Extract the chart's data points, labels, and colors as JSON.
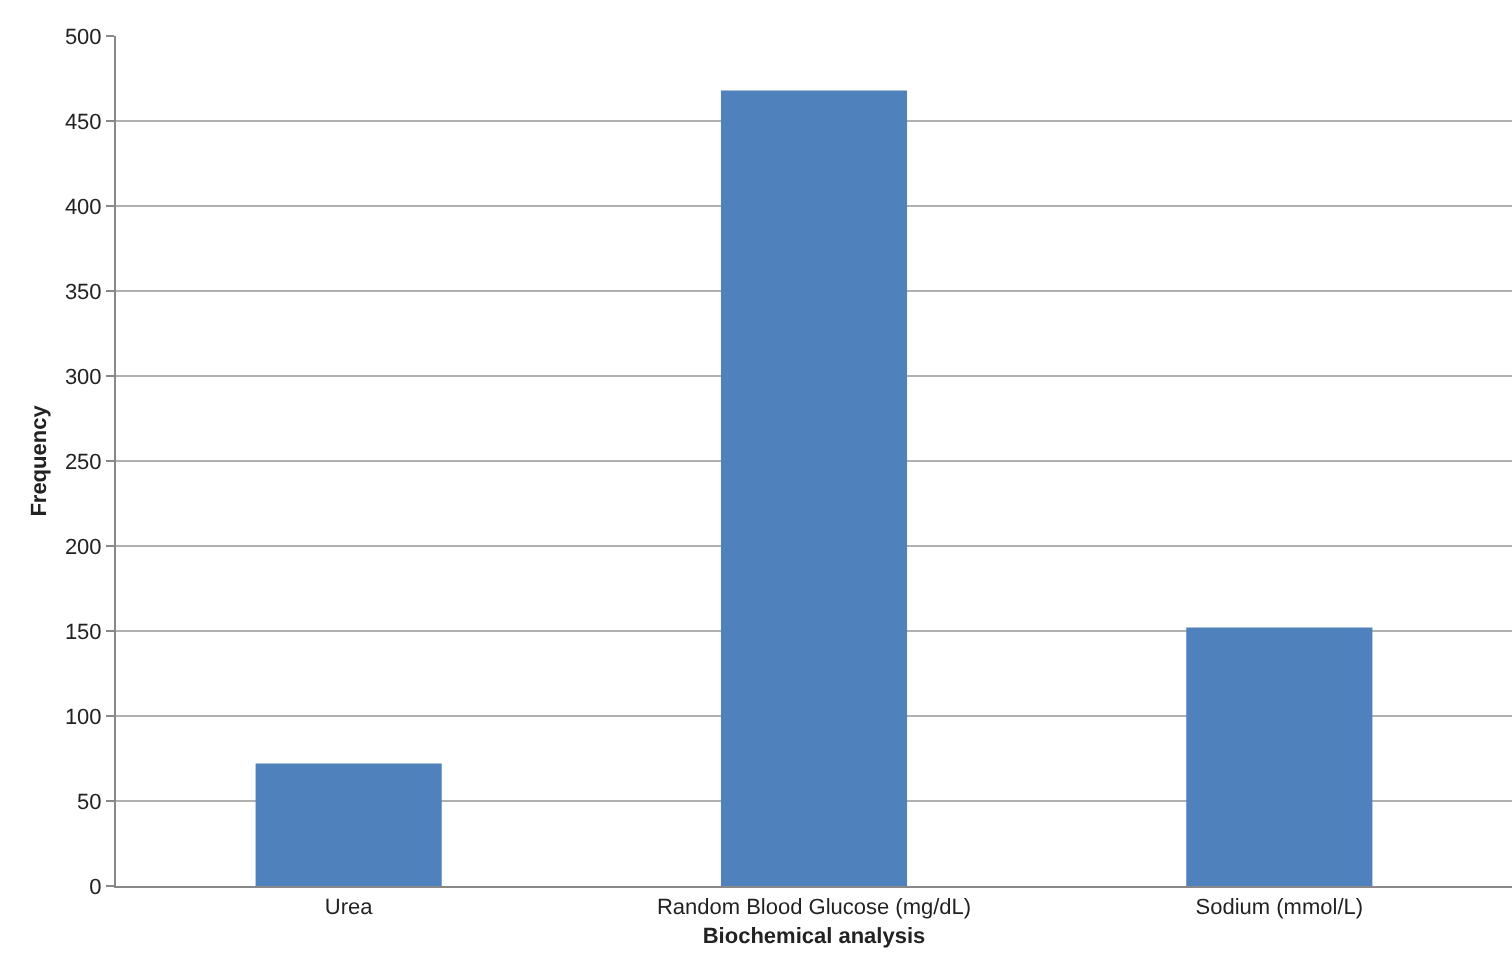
{
  "chart_data": {
    "type": "bar",
    "xlabel": "Biochemical analysis",
    "ylabel": "Frequency",
    "categories": [
      "Urea",
      "Random Blood Glucose (mg/dL)",
      "Sodium (mmol/L)"
    ],
    "values": [
      72,
      468,
      152
    ],
    "color": "#4f81bd",
    "ylim": [
      0,
      500
    ],
    "yticks": [
      0,
      50,
      100,
      150,
      200,
      250,
      300,
      350,
      400,
      450,
      500
    ],
    "grid": "y"
  }
}
